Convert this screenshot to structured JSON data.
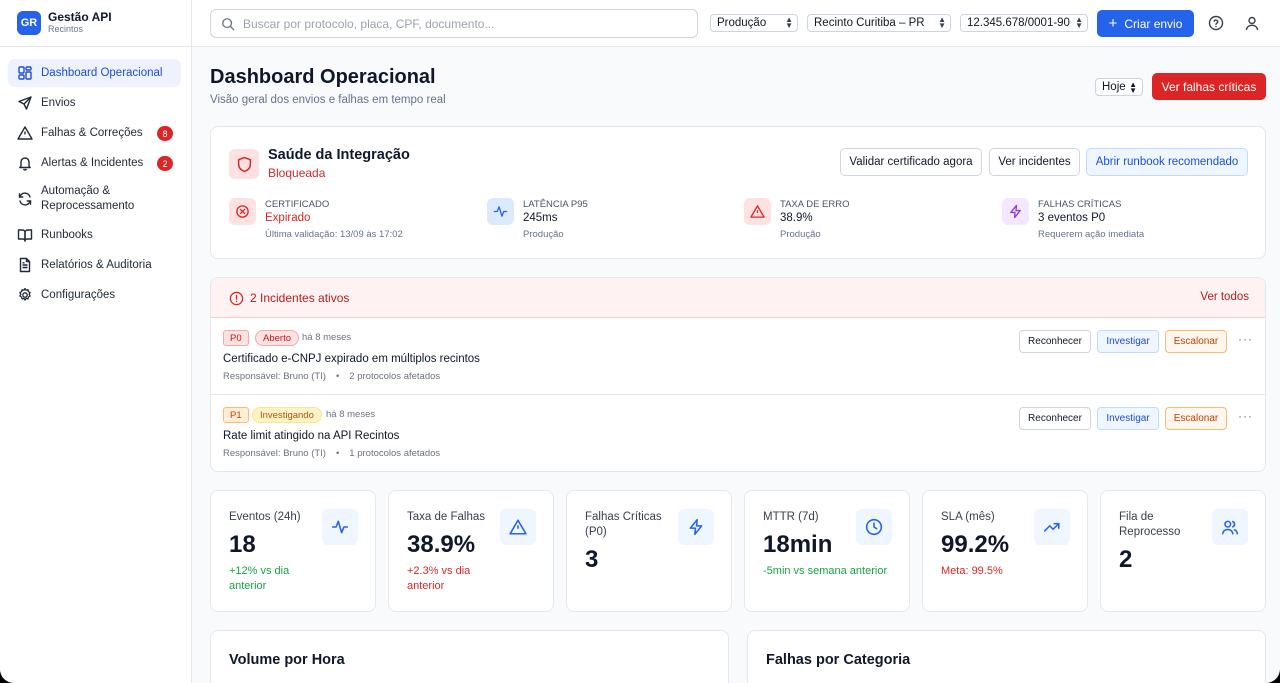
{
  "brand": {
    "initials": "GR",
    "title": "Gestão API",
    "subtitle": "Recintos"
  },
  "sidebar": {
    "items": [
      {
        "label": "Dashboard Operacional",
        "icon": "dashboard-icon",
        "active": true
      },
      {
        "label": "Envios",
        "icon": "send-icon"
      },
      {
        "label": "Falhas & Correções",
        "icon": "warning-icon",
        "badge": "8"
      },
      {
        "label": "Alertas & Incidentes",
        "icon": "bell-icon",
        "badge": "2"
      },
      {
        "label": "Automação & Reprocessamento",
        "icon": "refresh-icon"
      },
      {
        "label": "Runbooks",
        "icon": "book-icon"
      },
      {
        "label": "Relatórios & Auditoria",
        "icon": "report-icon"
      },
      {
        "label": "Configurações",
        "icon": "gear-icon"
      }
    ]
  },
  "topbar": {
    "search_placeholder": "Buscar por protocolo, placa, CPF, documento...",
    "environment": "Produção",
    "location": "Recinto Curitiba – PR",
    "cnpj": "12.345.678/0001-90",
    "create_label": "Criar envio"
  },
  "page": {
    "title": "Dashboard Operacional",
    "subtitle": "Visão geral dos envios e falhas em tempo real",
    "period": "Hoje",
    "critical_button": "Ver falhas críticas"
  },
  "health": {
    "title": "Saúde da Integração",
    "status": "Bloqueada",
    "buttons": [
      "Validar certificado agora",
      "Ver incidentes",
      "Abrir runbook recomendado"
    ],
    "metrics": [
      {
        "label": "Certificado",
        "value": "Expirado",
        "note": "Última validação: 13/09 às 17:02",
        "icon": "x-circle-icon",
        "color": "#dc2626"
      },
      {
        "label": "Latência P95",
        "value": "245ms",
        "note": "Produção",
        "icon": "activity-icon",
        "color": "#2563eb"
      },
      {
        "label": "Taxa de Erro",
        "value": "38.9%",
        "note": "Produção",
        "icon": "alert-triangle-icon",
        "color": "#dc2626"
      },
      {
        "label": "Falhas Críticas",
        "value": "3 eventos P0",
        "note": "Requerem ação imediata",
        "icon": "zap-icon",
        "color": "#9333ea"
      }
    ]
  },
  "incidents": {
    "header": "2 Incidentes ativos",
    "see_all": "Ver todos",
    "actions": [
      "Reconhecer",
      "Investigar",
      "Escalonar"
    ],
    "more": "···",
    "items": [
      {
        "priority": "P0",
        "status": "Aberto",
        "time": "há 8 meses",
        "title": "Certificado e-CNPJ expirado em múltiplos recintos",
        "owner": "Responsável: Bruno (TI)",
        "bullet": "•",
        "affected": "2 protocolos afetados"
      },
      {
        "priority": "P1",
        "status": "Investigando",
        "time": "há 8 meses",
        "title": "Rate limit atingido na API Recintos",
        "owner": "Responsável: Bruno (TI)",
        "bullet": "•",
        "affected": "1 protocolos afetados"
      }
    ]
  },
  "kpis": [
    {
      "label": "Eventos (24h)",
      "value": "18",
      "note": "+12% vs dia anterior",
      "tone": "green",
      "icon": "activity-icon"
    },
    {
      "label": "Taxa de Falhas",
      "value": "38.9%",
      "note": "+2.3% vs dia anterior",
      "tone": "red",
      "icon": "alert-triangle-icon"
    },
    {
      "label": "Falhas Críticas (P0)",
      "value": "3",
      "note": "",
      "tone": "",
      "icon": "zap-icon"
    },
    {
      "label": "MTTR (7d)",
      "value": "18min",
      "note": "-5min vs semana anterior",
      "tone": "green",
      "icon": "clock-icon"
    },
    {
      "label": "SLA (mês)",
      "value": "99.2%",
      "note": "Meta: 99.5%",
      "tone": "red",
      "icon": "trending-up-icon"
    },
    {
      "label": "Fila de Reprocesso",
      "value": "2",
      "note": "",
      "tone": "",
      "icon": "users-icon"
    }
  ],
  "charts": {
    "volume_title": "Volume por Hora",
    "failures_title": "Falhas por Categoria"
  },
  "colors": {
    "primary": "#2563eb",
    "danger": "#dc2626",
    "success": "#16a34a"
  }
}
